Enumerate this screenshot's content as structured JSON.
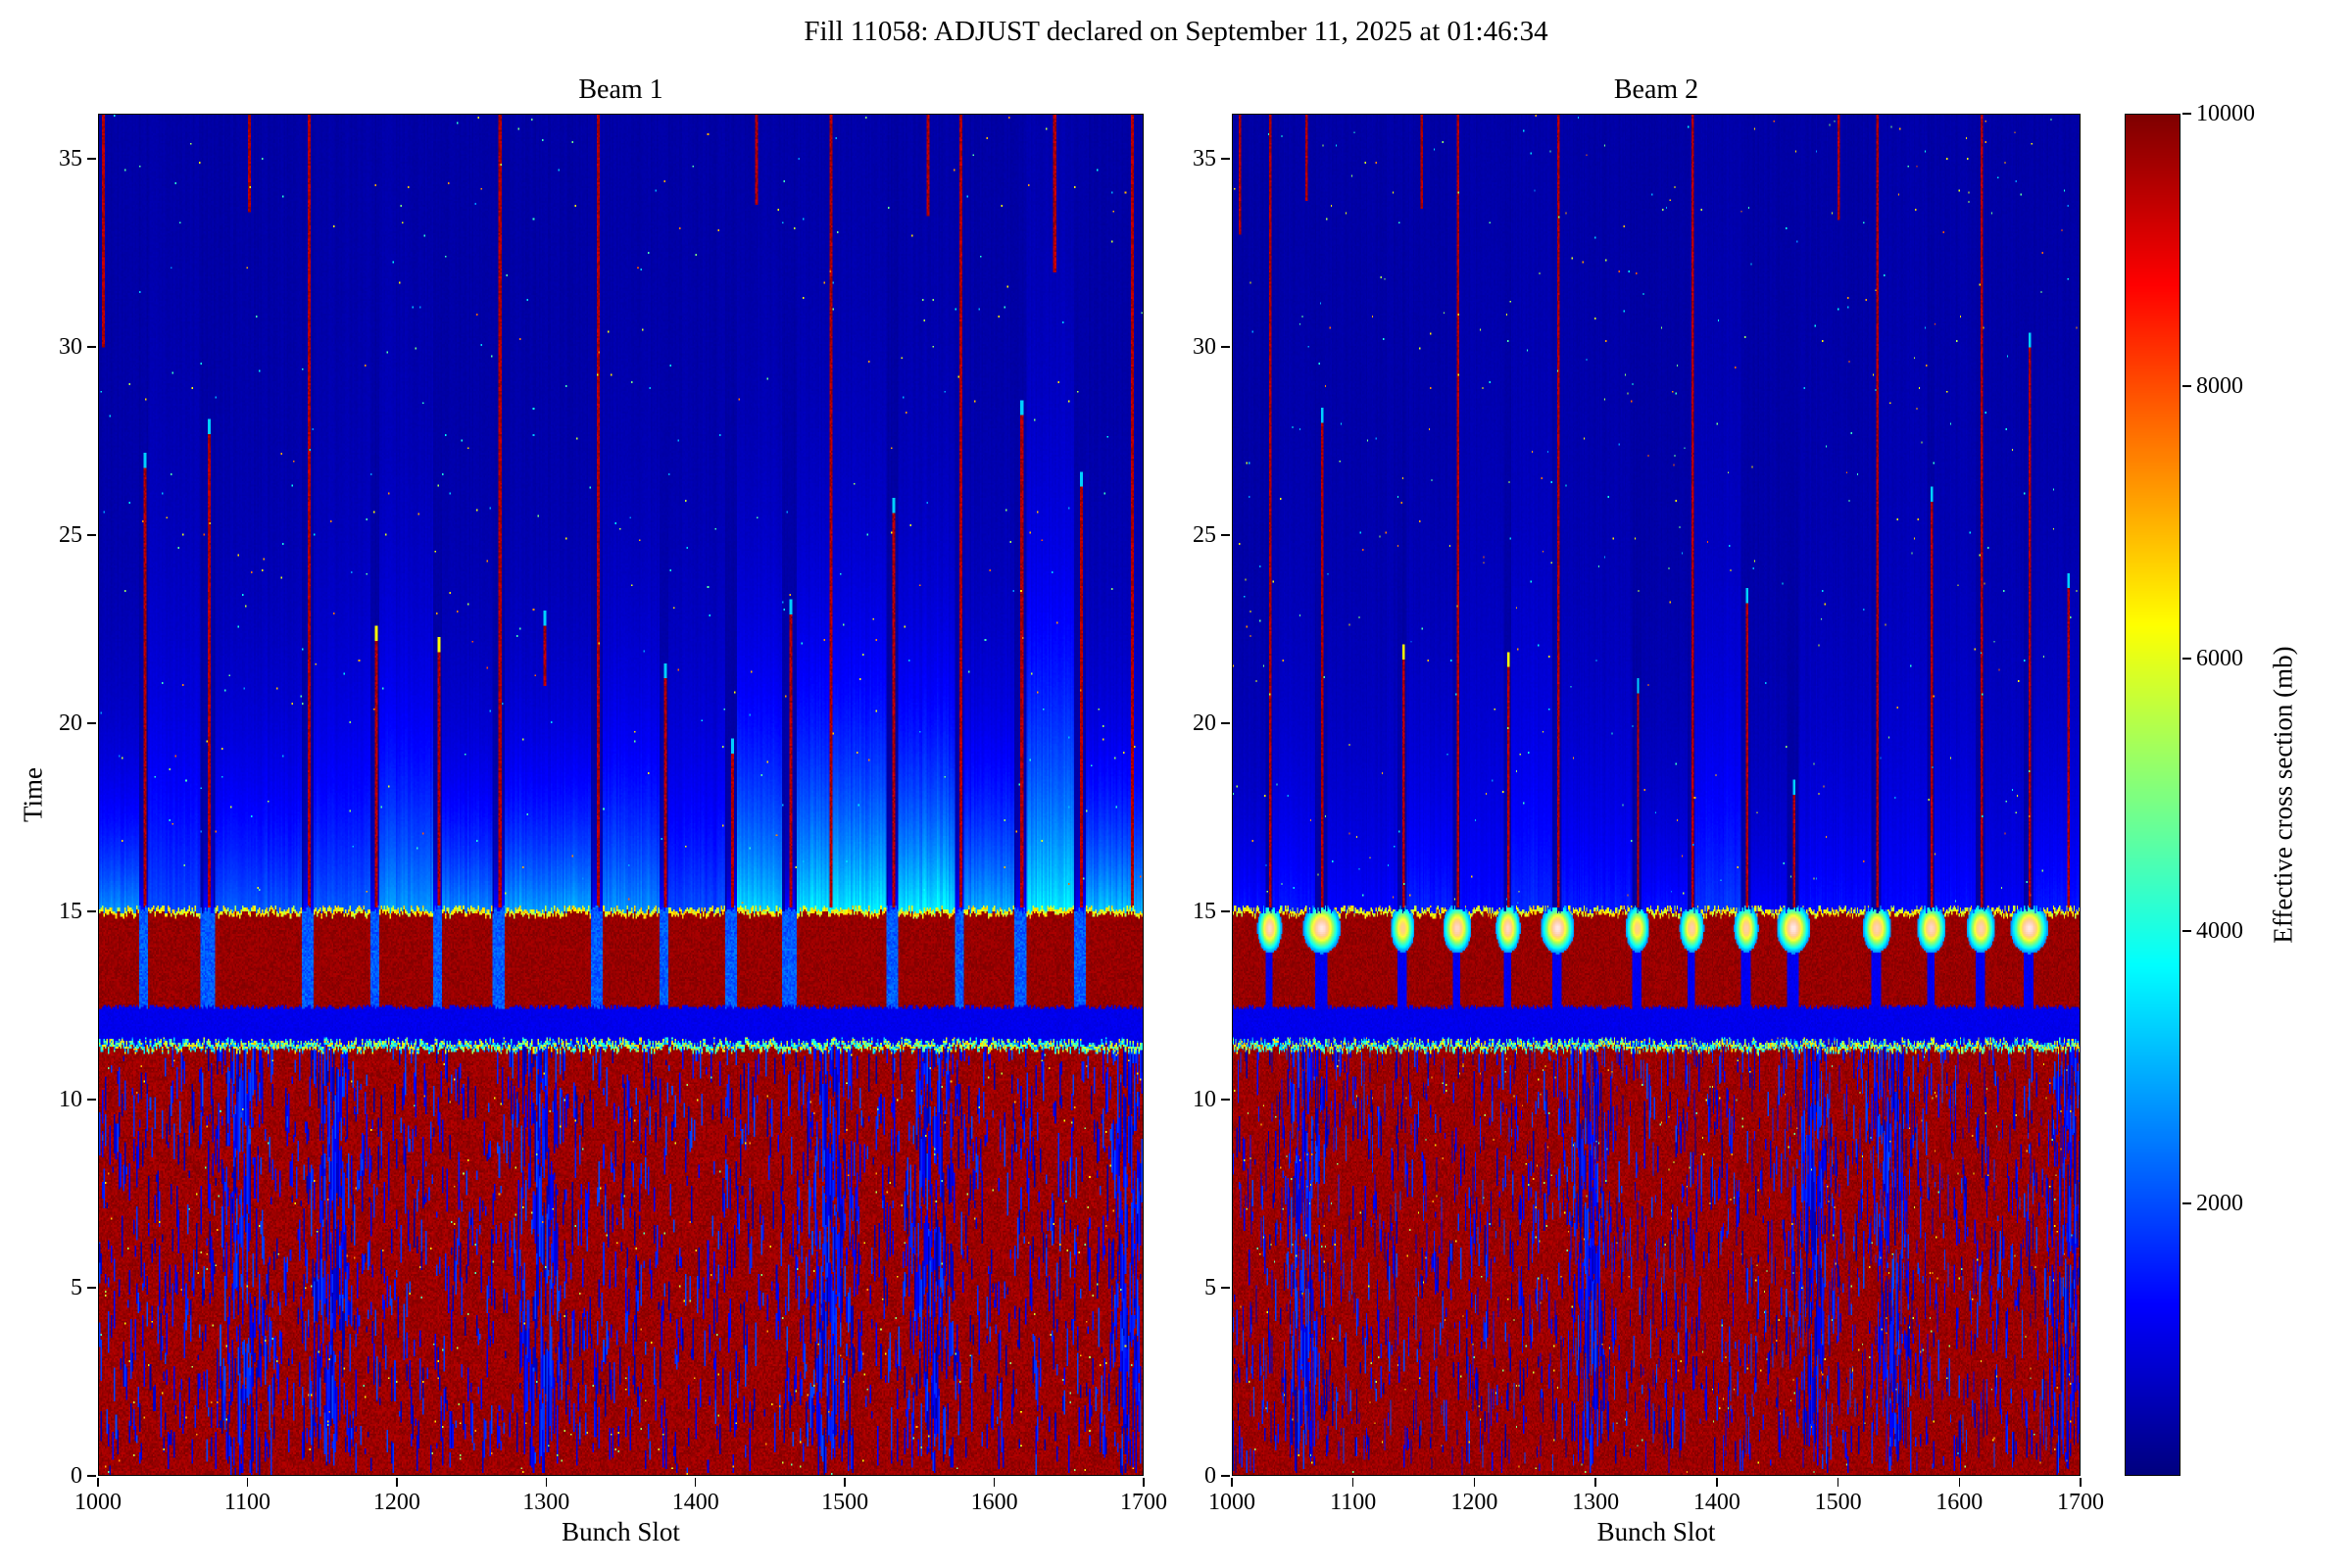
{
  "chart_data": {
    "type": "heatmap",
    "suptitle": "Fill 11058: ADJUST declared on September 11, 2025 at 01:46:34",
    "xlabel": "Bunch Slot",
    "ylabel": "Time",
    "x_range": [
      1000,
      1700
    ],
    "y_range": [
      0,
      36.2
    ],
    "x_ticks": [
      1000,
      1100,
      1200,
      1300,
      1400,
      1500,
      1600,
      1700
    ],
    "y_ticks": [
      0,
      5,
      10,
      15,
      20,
      25,
      30,
      35
    ],
    "colormap": "jet",
    "colorbar": {
      "label": "Effective cross section (mb)",
      "vmin": 0,
      "vmax": 10000,
      "ticks": [
        2000,
        4000,
        6000,
        8000,
        10000
      ]
    },
    "panels": [
      {
        "title": "Beam 1"
      },
      {
        "title": "Beam 2"
      }
    ],
    "structure": {
      "seed": 12345,
      "lower_saturated_block": {
        "t_max": 11.32,
        "value": 9700,
        "noise_value_range": [
          350,
          2000
        ]
      },
      "transition_fringe": {
        "t": 11.32,
        "thickness": 0.2,
        "value_range": [
          2200,
          7000
        ]
      },
      "mid_gap_band": {
        "t_range": [
          11.52,
          12.45
        ],
        "value": 1050
      },
      "train_band": {
        "t_range": [
          12.45,
          15.05
        ],
        "train_value": 9800,
        "top_fringe_value": 6000
      },
      "trains": [
        [
          1000,
          1027
        ],
        [
          1033,
          1068
        ],
        [
          1078,
          1136
        ],
        [
          1144,
          1182
        ],
        [
          1188,
          1224
        ],
        [
          1230,
          1264
        ],
        [
          1272,
          1330
        ],
        [
          1338,
          1376
        ],
        [
          1382,
          1420
        ],
        [
          1428,
          1458
        ],
        [
          1468,
          1528
        ],
        [
          1536,
          1574
        ],
        [
          1580,
          1614
        ],
        [
          1622,
          1654
        ],
        [
          1662,
          1700
        ]
      ],
      "gap_centers": [
        1030,
        1073,
        1140,
        1185,
        1227,
        1268,
        1334,
        1379,
        1424,
        1463,
        1532,
        1577,
        1618,
        1658
      ],
      "beam1": {
        "gap_band_value": 2000,
        "stripe_amp": 2400,
        "speckle_clusters": [
          1095,
          1155,
          1297,
          1490,
          1557,
          1690
        ],
        "streaks": [
          [
            1002,
            30.0,
            36.2
          ],
          [
            1030,
            15.1,
            27.2
          ],
          [
            1073,
            15.1,
            28.1
          ],
          [
            1100,
            33.6,
            36.2
          ],
          [
            1140,
            15.1,
            36.2
          ],
          [
            1185,
            15.1,
            22.6
          ],
          [
            1227,
            15.1,
            22.3
          ],
          [
            1268,
            15.1,
            36.2
          ],
          [
            1298,
            21.0,
            23.0
          ],
          [
            1334,
            15.1,
            36.2
          ],
          [
            1379,
            15.1,
            21.6
          ],
          [
            1424,
            15.1,
            19.6
          ],
          [
            1440,
            33.8,
            36.2
          ],
          [
            1463,
            15.1,
            23.3
          ],
          [
            1490,
            15.1,
            36.2
          ],
          [
            1532,
            15.1,
            26.0
          ],
          [
            1555,
            33.5,
            36.2
          ],
          [
            1577,
            15.1,
            36.2
          ],
          [
            1618,
            15.1,
            28.6
          ],
          [
            1640,
            32.0,
            36.2
          ],
          [
            1658,
            15.1,
            26.7
          ],
          [
            1692,
            15.1,
            36.2
          ]
        ]
      },
      "beam2": {
        "stripe_amp": 1050,
        "blob_time": 14.55,
        "blobs": [
          [
            1030,
            0.95,
            6
          ],
          [
            1073,
            1.0,
            9
          ],
          [
            1140,
            0.85,
            6
          ],
          [
            1185,
            0.95,
            7
          ],
          [
            1227,
            0.95,
            6
          ],
          [
            1268,
            1.0,
            8
          ],
          [
            1334,
            0.85,
            6
          ],
          [
            1379,
            0.9,
            6
          ],
          [
            1424,
            0.9,
            6
          ],
          [
            1463,
            1.0,
            8
          ],
          [
            1532,
            0.92,
            7
          ],
          [
            1577,
            0.95,
            7
          ],
          [
            1618,
            0.92,
            7
          ],
          [
            1658,
            1.0,
            9
          ]
        ],
        "speckle_clusters": [
          1060,
          1295,
          1480,
          1545,
          1690
        ],
        "streaks": [
          [
            1005,
            33.0,
            36.2
          ],
          [
            1030,
            15.1,
            36.2
          ],
          [
            1060,
            33.9,
            36.2
          ],
          [
            1073,
            15.1,
            28.4
          ],
          [
            1140,
            15.1,
            22.1
          ],
          [
            1155,
            33.7,
            36.2
          ],
          [
            1185,
            15.1,
            36.2
          ],
          [
            1227,
            15.1,
            21.9
          ],
          [
            1268,
            15.1,
            36.2
          ],
          [
            1334,
            15.1,
            21.2
          ],
          [
            1379,
            15.1,
            36.2
          ],
          [
            1424,
            15.1,
            23.6
          ],
          [
            1463,
            15.1,
            18.5
          ],
          [
            1500,
            33.4,
            36.2
          ],
          [
            1532,
            15.1,
            36.2
          ],
          [
            1577,
            15.1,
            26.3
          ],
          [
            1618,
            15.1,
            36.2
          ],
          [
            1658,
            15.1,
            30.4
          ],
          [
            1690,
            15.1,
            24.0
          ]
        ]
      }
    }
  }
}
